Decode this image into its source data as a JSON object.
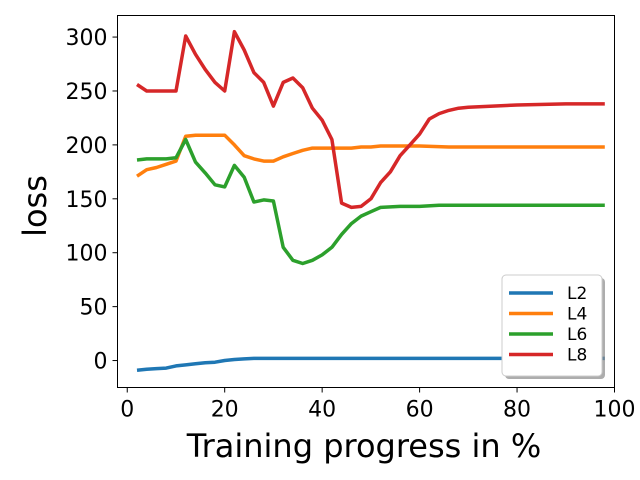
{
  "chart_data": {
    "type": "line",
    "title": "",
    "xlabel": "Training progress in %",
    "ylabel": "loss",
    "xlim": [
      -2,
      100
    ],
    "ylim": [
      -25,
      320
    ],
    "xticks": [
      0,
      20,
      40,
      60,
      80,
      100
    ],
    "yticks": [
      0,
      50,
      100,
      150,
      200,
      250,
      300
    ],
    "grid": false,
    "legend_position": "lower-right",
    "series": [
      {
        "name": "L2",
        "color": "#1f77b4",
        "x": [
          2,
          4,
          6,
          8,
          10,
          12,
          14,
          16,
          18,
          20,
          22,
          24,
          26,
          28,
          30,
          34,
          40,
          50,
          60,
          70,
          80,
          90,
          98
        ],
        "y": [
          -9,
          -8,
          -7.5,
          -7,
          -5,
          -4,
          -3,
          -2,
          -1.5,
          0,
          1,
          1.5,
          2,
          2,
          2,
          2,
          2,
          2,
          2,
          2,
          2,
          2,
          2
        ]
      },
      {
        "name": "L4",
        "color": "#ff7f0e",
        "x": [
          2,
          4,
          6,
          8,
          10,
          12,
          14,
          16,
          18,
          20,
          22,
          24,
          26,
          28,
          30,
          32,
          34,
          36,
          38,
          40,
          42,
          44,
          46,
          48,
          50,
          52,
          56,
          60,
          66,
          70,
          80,
          90,
          98
        ],
        "y": [
          171,
          177,
          179,
          182,
          185,
          208,
          209,
          209,
          209,
          209,
          200,
          190,
          187,
          185,
          185,
          189,
          192,
          195,
          197,
          197,
          197,
          197,
          197,
          198,
          198,
          199,
          199,
          199,
          198,
          198,
          198,
          198,
          198
        ]
      },
      {
        "name": "L6",
        "color": "#2ca02c",
        "x": [
          2,
          4,
          6,
          8,
          10,
          12,
          14,
          16,
          18,
          20,
          22,
          24,
          26,
          28,
          30,
          32,
          34,
          36,
          38,
          40,
          42,
          44,
          46,
          48,
          50,
          52,
          56,
          60,
          64,
          66,
          70,
          80,
          90,
          98
        ],
        "y": [
          186,
          187,
          187,
          187,
          188,
          205,
          184,
          174,
          163,
          161,
          181,
          170,
          147,
          149,
          148,
          105,
          93,
          90,
          93,
          98,
          105,
          117,
          127,
          134,
          138,
          142,
          143,
          143,
          144,
          144,
          144,
          144,
          144,
          144
        ]
      },
      {
        "name": "L8",
        "color": "#d62728",
        "x": [
          2,
          4,
          6,
          8,
          10,
          12,
          14,
          16,
          18,
          20,
          22,
          24,
          26,
          28,
          30,
          32,
          34,
          36,
          38,
          40,
          42,
          44,
          46,
          48,
          50,
          52,
          54,
          56,
          58,
          60,
          62,
          64,
          66,
          68,
          70,
          75,
          80,
          90,
          98
        ],
        "y": [
          256,
          250,
          250,
          250,
          250,
          301,
          284,
          270,
          258,
          250,
          305,
          288,
          267,
          258,
          236,
          258,
          262,
          253,
          234,
          223,
          205,
          146,
          142,
          143,
          150,
          165,
          175,
          190,
          200,
          210,
          224,
          229,
          232,
          234,
          235,
          236,
          237,
          238,
          238
        ]
      }
    ]
  }
}
